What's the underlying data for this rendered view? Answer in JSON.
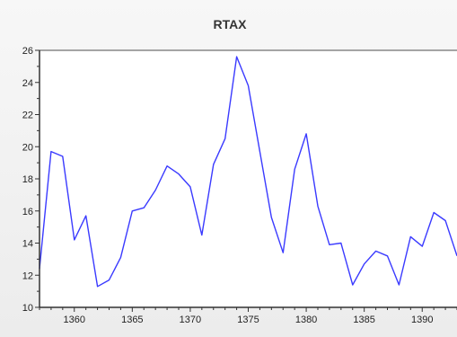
{
  "chart_data": {
    "type": "line",
    "title": "RTAX",
    "xlabel": "",
    "ylabel": "",
    "xlim": [
      1357,
      1393
    ],
    "ylim": [
      10,
      26
    ],
    "x_ticks": [
      1360,
      1365,
      1370,
      1375,
      1380,
      1385,
      1390
    ],
    "y_ticks": [
      10,
      12,
      14,
      16,
      18,
      20,
      22,
      24,
      26
    ],
    "grid": false,
    "series": [
      {
        "color": "#3a3aff",
        "x": [
          1357,
          1358,
          1359,
          1360,
          1361,
          1362,
          1363,
          1364,
          1365,
          1366,
          1367,
          1368,
          1369,
          1370,
          1371,
          1372,
          1373,
          1374,
          1375,
          1376,
          1377,
          1378,
          1379,
          1380,
          1381,
          1382,
          1383,
          1384,
          1385,
          1386,
          1387,
          1388,
          1389,
          1390,
          1391,
          1392,
          1393
        ],
        "values": [
          12.4,
          19.7,
          19.4,
          14.2,
          15.7,
          11.3,
          11.7,
          13.1,
          16.0,
          16.2,
          17.3,
          18.8,
          18.3,
          17.5,
          14.5,
          18.9,
          20.5,
          25.6,
          23.8,
          19.7,
          15.6,
          13.4,
          18.6,
          20.8,
          16.3,
          13.9,
          14.0,
          11.4,
          12.7,
          13.5,
          13.2,
          11.4,
          14.4,
          13.8,
          15.9,
          15.4,
          13.2
        ]
      }
    ]
  },
  "style": {
    "plot_background": "#ffffff",
    "frame_color": "#333333",
    "top_frame_color": "#888888"
  }
}
